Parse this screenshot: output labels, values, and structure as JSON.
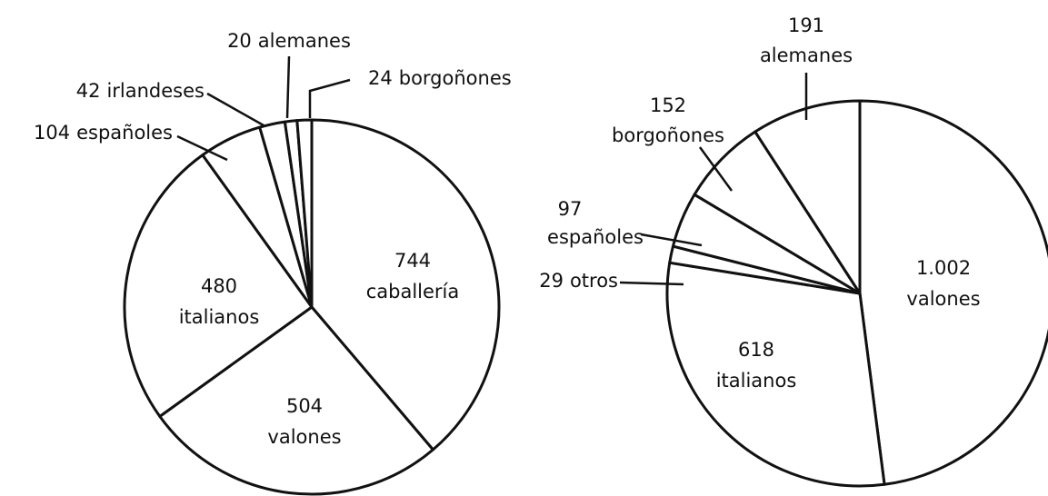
{
  "chart_data": [
    {
      "type": "pie",
      "labels": [
        "caballería",
        "valones",
        "italianos",
        "españoles",
        "irlandeses",
        "alemanes",
        "borgoñones"
      ],
      "values": [
        744,
        504,
        480,
        104,
        42,
        20,
        24
      ]
    },
    {
      "type": "pie",
      "labels": [
        "valones",
        "italianos",
        "otros",
        "españoles",
        "borgoñones",
        "alemanes"
      ],
      "values": [
        1002,
        618,
        29,
        97,
        152,
        191
      ],
      "value_labels": [
        "1.002",
        "618",
        "29",
        "97",
        "152",
        "191"
      ]
    }
  ]
}
